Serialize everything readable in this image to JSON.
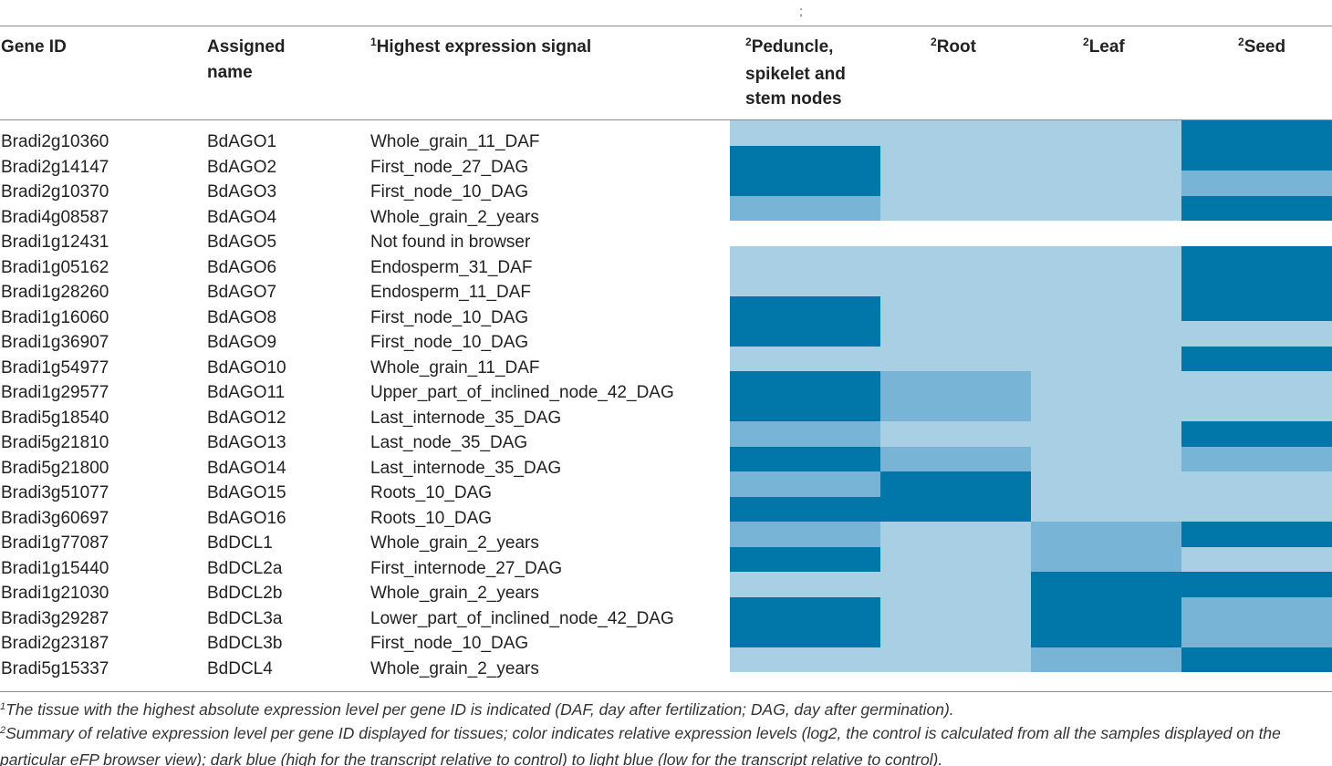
{
  "top_mark": ";",
  "headers": {
    "gene_id": "Gene ID",
    "assigned_name_1": "Assigned",
    "assigned_name_2": "name",
    "signal_sup": "1",
    "signal": "Highest expression signal",
    "t1_sup": "2",
    "t1_line1": "Peduncle,",
    "t1_line2": "spikelet and",
    "t1_line3": "stem nodes",
    "t2_sup": "2",
    "t2": "Root",
    "t3_sup": "2",
    "t3": "Leaf",
    "t4_sup": "2",
    "t4": "Seed"
  },
  "colors": {
    "light": "#a8cfe4",
    "medium": "#78b4d5",
    "dark": "#0177a9",
    "none": "#ffffff"
  },
  "rows": [
    {
      "gene": "Bradi2g10360",
      "name": "BdAGO1",
      "signal": "Whole_grain_11_DAF",
      "levels": [
        "light",
        "light",
        "light",
        "dark"
      ]
    },
    {
      "gene": "Bradi2g14147",
      "name": "BdAGO2",
      "signal": "First_node_27_DAG",
      "levels": [
        "dark",
        "light",
        "light",
        "dark"
      ]
    },
    {
      "gene": "Bradi2g10370",
      "name": "BdAGO3",
      "signal": "First_node_10_DAG",
      "levels": [
        "dark",
        "light",
        "light",
        "medium"
      ]
    },
    {
      "gene": "Bradi4g08587",
      "name": "BdAGO4",
      "signal": "Whole_grain_2_years",
      "levels": [
        "medium",
        "light",
        "light",
        "dark"
      ]
    },
    {
      "gene": "Bradi1g12431",
      "name": "BdAGO5",
      "signal": "Not found in browser",
      "levels": [
        "none",
        "none",
        "none",
        "none"
      ]
    },
    {
      "gene": "Bradi1g05162",
      "name": "BdAGO6",
      "signal": "Endosperm_31_DAF",
      "levels": [
        "light",
        "light",
        "light",
        "dark"
      ]
    },
    {
      "gene": "Bradi1g28260",
      "name": "BdAGO7",
      "signal": "Endosperm_11_DAF",
      "levels": [
        "light",
        "light",
        "light",
        "dark"
      ]
    },
    {
      "gene": "Bradi1g16060",
      "name": "BdAGO8",
      "signal": "First_node_10_DAG",
      "levels": [
        "dark",
        "light",
        "light",
        "dark"
      ]
    },
    {
      "gene": "Bradi1g36907",
      "name": "BdAGO9",
      "signal": "First_node_10_DAG",
      "levels": [
        "dark",
        "light",
        "light",
        "light"
      ]
    },
    {
      "gene": "Bradi1g54977",
      "name": "BdAGO10",
      "signal": "Whole_grain_11_DAF",
      "levels": [
        "light",
        "light",
        "light",
        "dark"
      ]
    },
    {
      "gene": "Bradi1g29577",
      "name": "BdAGO11",
      "signal": "Upper_part_of_inclined_node_42_DAG",
      "levels": [
        "dark",
        "medium",
        "light",
        "light"
      ]
    },
    {
      "gene": "Bradi5g18540",
      "name": "BdAGO12",
      "signal": "Last_internode_35_DAG",
      "levels": [
        "dark",
        "medium",
        "light",
        "light"
      ]
    },
    {
      "gene": "Bradi5g21810",
      "name": "BdAGO13",
      "signal": "Last_node_35_DAG",
      "levels": [
        "medium",
        "light",
        "light",
        "dark"
      ]
    },
    {
      "gene": "Bradi5g21800",
      "name": "BdAGO14",
      "signal": "Last_internode_35_DAG",
      "levels": [
        "dark",
        "medium",
        "light",
        "medium"
      ]
    },
    {
      "gene": "Bradi3g51077",
      "name": "BdAGO15",
      "signal": "Roots_10_DAG",
      "levels": [
        "medium",
        "dark",
        "light",
        "light"
      ]
    },
    {
      "gene": "Bradi3g60697",
      "name": "BdAGO16",
      "signal": "Roots_10_DAG",
      "levels": [
        "dark",
        "dark",
        "light",
        "light"
      ]
    },
    {
      "gene": "Bradi1g77087",
      "name": "BdDCL1",
      "signal": "Whole_grain_2_years",
      "levels": [
        "medium",
        "light",
        "medium",
        "dark"
      ]
    },
    {
      "gene": "Bradi1g15440",
      "name": "BdDCL2a",
      "signal": "First_internode_27_DAG",
      "levels": [
        "dark",
        "light",
        "medium",
        "light"
      ]
    },
    {
      "gene": "Bradi1g21030",
      "name": "BdDCL2b",
      "signal": "Whole_grain_2_years",
      "levels": [
        "light",
        "light",
        "dark",
        "dark"
      ]
    },
    {
      "gene": "Bradi3g29287",
      "name": "BdDCL3a",
      "signal": "Lower_part_of_inclined_node_42_DAG",
      "levels": [
        "dark",
        "light",
        "dark",
        "medium"
      ]
    },
    {
      "gene": "Bradi2g23187",
      "name": "BdDCL3b",
      "signal": "First_node_10_DAG",
      "levels": [
        "dark",
        "light",
        "dark",
        "medium"
      ]
    },
    {
      "gene": "Bradi5g15337",
      "name": "BdDCL4",
      "signal": "Whole_grain_2_years",
      "levels": [
        "light",
        "light",
        "medium",
        "dark"
      ]
    }
  ],
  "footnotes": {
    "f1_sup": "1",
    "f1": "The tissue with the highest absolute expression level per gene ID is indicated (DAF, day after fertilization; DAG, day after germination).",
    "f2_sup": "2",
    "f2": "Summary of relative expression level per gene ID displayed for tissues; color indicates relative expression levels (log2, the control is calculated from all the samples displayed on the particular eFP browser view); dark blue (high for the transcript relative to control) to light blue (low for the transcript relative to control)."
  }
}
